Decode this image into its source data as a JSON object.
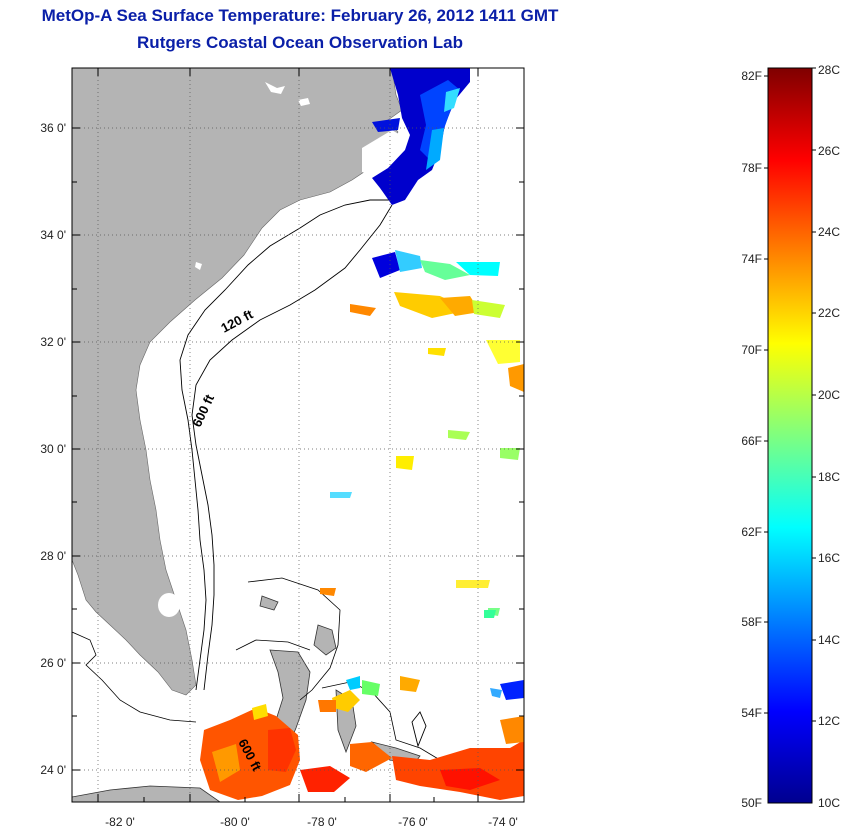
{
  "title": "MetOp-A Sea Surface Temperature:  February 26, 2012 1411 GMT",
  "subtitle": "Rutgers Coastal Ocean Observation Lab",
  "map": {
    "lat_ticks": [
      "36 0'",
      "34 0'",
      "32 0'",
      "30 0'",
      "28 0'",
      "26 0'",
      "24 0'"
    ],
    "lon_ticks": [
      "-82 0'",
      "-80 0'",
      "-78 0'",
      "-76 0'",
      "-74 0'"
    ],
    "contour_labels": [
      "120 ft",
      "600 ft",
      "600 ft"
    ],
    "colors": {
      "land": "#b4b4b4",
      "ocean": "#ffffff",
      "grid": "#555555"
    }
  },
  "colorbar": {
    "fahrenheit_labels": [
      "82F",
      "78F",
      "74F",
      "70F",
      "66F",
      "62F",
      "58F",
      "54F",
      "50F"
    ],
    "celsius_labels": [
      "28C",
      "26C",
      "24C",
      "22C",
      "20C",
      "18C",
      "16C",
      "14C",
      "12C",
      "10C"
    ],
    "colormap": [
      "#00008f",
      "#0000ff",
      "#007fff",
      "#00ffff",
      "#7fff7f",
      "#ffff00",
      "#ff7f00",
      "#ff0000",
      "#7f0000"
    ]
  }
}
